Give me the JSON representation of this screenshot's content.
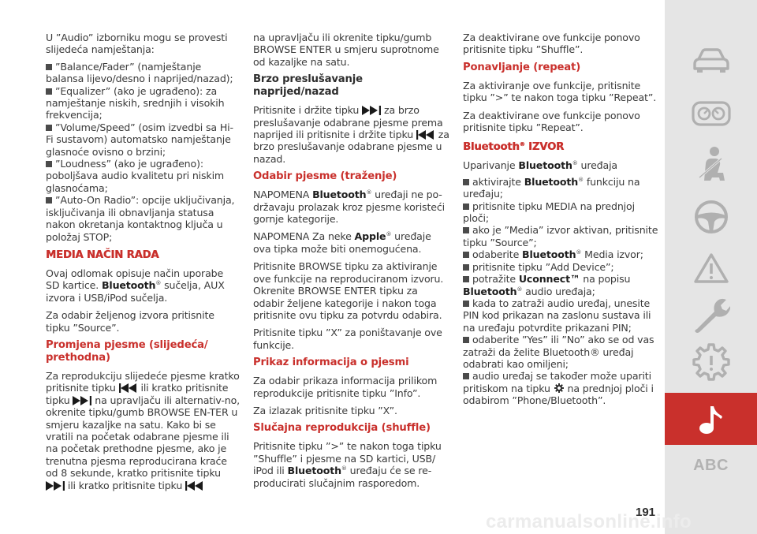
{
  "col1": {
    "intro": "U ”Audio” izborniku mogu se provesti slijedeća namještanja:",
    "bullets": [
      "”Balance/Fader” (namještanje balansa lijevo/desno i naprijed/nazad);",
      "”Equalizer” (ako je ugrađeno): za namještanje niskih, srednjih i visokih frekvencija;",
      "”Volume/Speed” (osim izvedbi sa Hi-Fi sustavom) automatsko namještanje glasnoće ovisno o brzini;",
      "”Loudness” (ako je ugrađeno): poboljšava audio kvalitetu pri niskim glasnoćama;",
      "”Auto-On Radio”: opcije uključivanja, isključivanja ili obnavljanja statusa nakon okretanja kontaktnog ključa u položaj STOP;"
    ],
    "heading_media": "MEDIA NAČIN RADA",
    "media_p1_a": "Ovaj odlomak opisuje način uporabe SD kartice.",
    "media_p1_b": "Bluetooth",
    "media_p1_c": "sučelja, AUX izvora i USB/iPod sučelja.",
    "media_p2": "Za odabir željenog izvora pritisnite tipku ”Source”.",
    "heading_track": "Promjena pjesme (slijedeća/ prethodna)",
    "track_a": "Za reprodukciju slijedeće pjesme kratko pritisnite tipku",
    "track_b": "ili kratko pritisnite tipku",
    "track_c": "na upravljaču ili alternativ-no, okrenite tipku/gumb BROWSE EN-TER u smjeru kazaljke na satu. Kako bi se vratili na početak odabrane pjesme ili na početak prethodne pjesme, ako je trenutna pjesma reproducirana kraće od 8 sekunde, kratko pritisnite tipku",
    "track_d": "ili kratko pritisnite tipku"
  },
  "col2": {
    "cont": "na upravljaču ili okrenite tipku/gumb BROWSE ENTER u smjeru suprotnome od kazaljke na satu.",
    "heading_fast": "Brzo preslušavanje naprijed/nazad",
    "fast_a": "Pritisnite i držite tipku",
    "fast_b": "za brzo preslušavanje odabrane pjesme prema naprijed ili pritisnite i držite tipku",
    "fast_c": "za brzo preslušavanje odabrane pjesme u nazad.",
    "heading_select": "Odabir pjesme (traženje)",
    "note1_a": "NAPOMENA",
    "note1_b": "Bluetooth",
    "note1_c": "uređaji ne po-državaju prolazak kroz pjesme koristeći gornje kategorije.",
    "note2_a": "NAPOMENA Za neke",
    "note2_b": "Apple",
    "note2_c": "uređaje ova tipka može biti onemogućena.",
    "browse": "Pritisnite BROWSE tipku za aktiviranje ove funkcije na reproduciranom izvoru. Okrenite BROWSE ENTER tipku za odabir željene kategorije i nakon toga pritisnite ovu tipku za potvrdu odabira.",
    "cancel": "Pritisnite tipku ”X” za poništavanje ove funkcije.",
    "heading_info": "Prikaz informacija o pjesmi",
    "info1": "Za odabir prikaza informacija prilikom reprodukcije pritisnite tipku ”Info”.",
    "info2": "Za izlazak pritisnite tipku ”X”.",
    "heading_shuffle": "Slučajna reprodukcija (shuffle)",
    "shuffle_a": "Pritisnite tipku ”>” te nakon toga tipku ”Shuffle” i pjesme na SD kartici, USB/ iPod ili",
    "shuffle_b": "Bluetooth",
    "shuffle_c": "uređaju će se re-producirati slučajnim rasporedom."
  },
  "col3": {
    "deact1": "Za deaktivirane ove funkcije ponovo pritisnite tipku ”Shuffle”.",
    "heading_repeat": "Ponavljanje (repeat)",
    "repeat": "Za aktiviranje ove funkcije, pritisnite tipku ”>” te nakon toga tipku ”Repeat”.",
    "deact2": "Za deaktivirane ove funkcije ponovo pritisnite tipku ”Repeat”.",
    "heading_bt_a": "Bluetooth",
    "heading_bt_b": "IZVOR",
    "pair_a": "Uparivanje",
    "pair_b": "Bluetooth",
    "pair_c": "uređaja",
    "b1_a": "aktivirajte",
    "b1_b": "Bluetooth",
    "b1_c": "funkciju na uređaju;",
    "b2": "pritisnite tipku MEDIA na prednjoj ploči;",
    "b3": "ako je ”Media” izvor aktivan, pritisnite tipku ”Source”;",
    "b4_a": "odaberite",
    "b4_b": "Bluetooth",
    "b4_c": "Media izvor;",
    "b5": "pritisnite tipku ”Add Device”;",
    "b6_a": "potražite",
    "b6_b": "Uconnect™",
    "b6_c": "na popisu",
    "b6_d": "Bluetooth",
    "b6_e": "audio uređaja;",
    "b7": "kada to zatraži audio uređaj, unesite PIN kod prikazan na zaslonu sustava ili na uređaju potvrdite prikazani PIN;",
    "b8": "odaberite ”Yes” ili ”No” ako se od vas zatraži da želite Bluetooth® uređaj odabrati kao omiljeni;",
    "b9_a": "audio uređaj se također može upariti pritiskom na tipku",
    "b9_b": "na prednjoj ploči i odabirom ”Phone/Bluetooth”."
  },
  "reg": "®",
  "sidebar": {
    "abc": "ABC",
    "icons": [
      "car-icon",
      "dashboard-icon",
      "seatbelt-icon",
      "steering-wheel-icon",
      "warning-triangle-icon",
      "wrench-icon",
      "gear-icon",
      "music-note-icon"
    ],
    "active_color": "#c9302c"
  },
  "page_number": "191",
  "watermark": "carmanualsonline.info"
}
